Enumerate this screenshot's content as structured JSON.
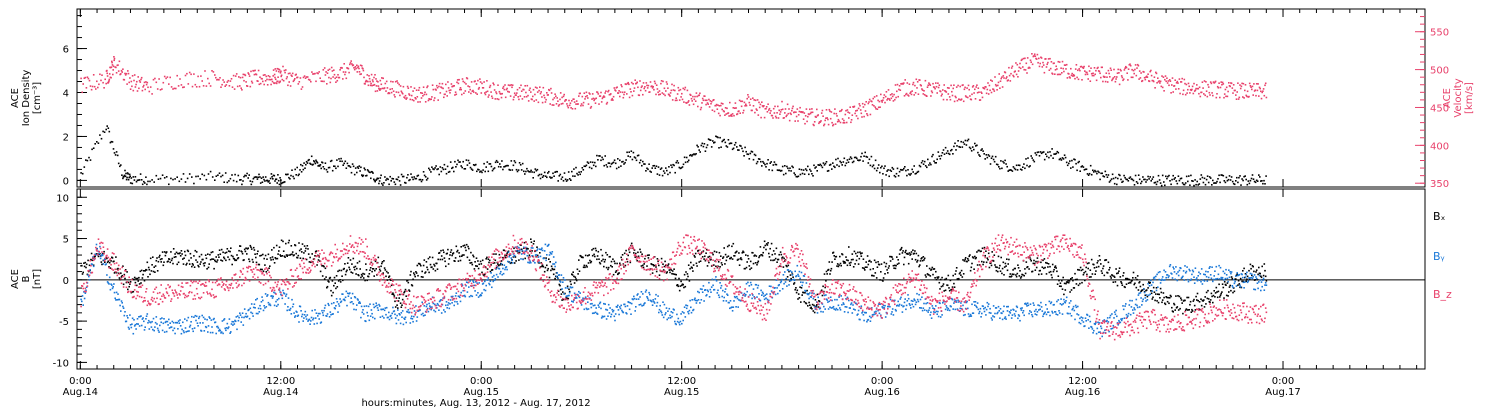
{
  "chart_data": [
    {
      "type": "scatter",
      "panel": "top",
      "ylabel_left": [
        "ACE",
        "Ion Density",
        "[cm⁻³]"
      ],
      "ylabel_right": [
        "ACE",
        "Velocity",
        "[km/s]"
      ],
      "ylim_left": [
        -0.3,
        7.8
      ],
      "ylim_right": [
        345,
        580
      ],
      "yticks_left": [
        "0",
        "2",
        "4",
        "6"
      ],
      "yticks_right": [
        "350",
        "400",
        "450",
        "500",
        "550"
      ],
      "series": [
        {
          "axis": "left",
          "color": "#000000",
          "x": [
            0.0,
            1.5,
            2.5,
            3.0,
            4.0,
            6.0,
            8.0,
            9.5,
            10.5,
            11.3,
            12.0,
            13.0,
            13.8,
            14.5,
            15.5,
            16.5,
            17.3,
            18.0,
            19.0,
            20.0,
            21.0,
            22.0,
            23.0,
            24.0,
            25.0,
            26.0,
            27.0,
            28.0,
            29.0,
            30.0,
            31.0,
            32.0,
            33.0,
            34.0,
            35.0,
            36.0,
            37.0,
            38.0,
            39.0,
            40.0,
            41.0,
            42.0,
            43.0,
            44.0,
            45.0,
            46.0,
            47.0,
            48.0,
            49.0,
            50.0,
            51.0,
            52.0,
            53.0,
            54.0,
            55.0,
            56.0,
            57.0,
            58.0,
            59.0,
            60.0,
            61.0,
            62.0,
            63.0,
            64.0,
            65.0,
            66.0,
            67.0,
            68.0,
            69.0,
            70.0,
            71.0
          ],
          "y": [
            0.3,
            2.5,
            0.3,
            0.1,
            0.1,
            0.1,
            0.2,
            0.1,
            0.1,
            0.1,
            0.1,
            0.4,
            1.0,
            0.6,
            0.8,
            0.5,
            0.3,
            0.05,
            0.05,
            0.1,
            0.4,
            0.6,
            0.8,
            0.6,
            0.8,
            0.7,
            0.4,
            0.2,
            0.2,
            0.5,
            1.0,
            0.8,
            1.2,
            0.6,
            0.4,
            0.8,
            1.5,
            1.8,
            1.6,
            1.2,
            0.8,
            0.5,
            0.4,
            0.5,
            0.8,
            1.0,
            1.1,
            0.5,
            0.4,
            0.6,
            1.0,
            1.4,
            1.8,
            1.2,
            0.8,
            0.6,
            1.0,
            1.3,
            0.9,
            0.6,
            0.3,
            0.1,
            0.05,
            0.05,
            0.05,
            0.05,
            0.05,
            0.05,
            0.05,
            0.05,
            0.05
          ]
        },
        {
          "axis": "right",
          "color": "#e8416b",
          "x": [
            0.0,
            1.5,
            2.0,
            3.0,
            4.0,
            6.0,
            8.0,
            9.5,
            10.5,
            11.5,
            12.0,
            13.0,
            14.5,
            15.5,
            16.5,
            17.3,
            18.0,
            19.0,
            20.0,
            21.0,
            22.0,
            23.0,
            24.0,
            25.0,
            26.0,
            27.0,
            28.0,
            29.0,
            30.0,
            31.0,
            32.0,
            33.0,
            34.0,
            35.0,
            36.0,
            37.0,
            38.0,
            39.0,
            40.0,
            41.0,
            42.0,
            43.0,
            44.0,
            45.0,
            46.0,
            47.0,
            48.0,
            49.0,
            50.0,
            51.0,
            52.0,
            53.0,
            54.0,
            55.0,
            56.0,
            57.0,
            58.0,
            59.0,
            60.0,
            61.0,
            62.0,
            63.0,
            64.0,
            65.0,
            66.0,
            67.0,
            68.0,
            69.0,
            70.0,
            71.0
          ],
          "y": [
            480,
            488,
            510,
            485,
            478,
            488,
            490,
            484,
            490,
            490,
            495,
            485,
            492,
            496,
            504,
            486,
            480,
            475,
            468,
            470,
            474,
            480,
            478,
            472,
            470,
            470,
            466,
            460,
            460,
            462,
            470,
            476,
            480,
            474,
            468,
            460,
            452,
            448,
            458,
            444,
            448,
            440,
            438,
            438,
            440,
            450,
            460,
            476,
            478,
            474,
            470,
            470,
            470,
            485,
            500,
            512,
            505,
            500,
            496,
            496,
            490,
            500,
            490,
            482,
            478,
            476,
            475,
            473,
            472,
            472
          ]
        }
      ]
    },
    {
      "type": "scatter",
      "panel": "bottom",
      "ylabel": [
        "ACE",
        "B",
        "[nT]"
      ],
      "ylim": [
        -10.8,
        11
      ],
      "yticks": [
        "-10",
        "-5",
        "0",
        "5",
        "10"
      ],
      "legend_placement": "right",
      "series": [
        {
          "name": "Bₓ",
          "color": "#000000",
          "x": [
            0,
            1,
            2,
            3,
            4,
            5,
            6,
            7,
            8,
            9,
            10,
            11,
            12,
            13,
            14,
            15,
            16,
            17,
            18,
            19,
            20,
            21,
            22,
            23,
            24,
            25,
            26,
            27,
            28,
            29,
            30,
            31,
            32,
            33,
            34,
            35,
            36,
            37,
            38,
            39,
            40,
            41,
            42,
            43,
            44,
            45,
            46,
            47,
            48,
            49,
            50,
            51,
            52,
            53,
            54,
            55,
            56,
            57,
            58,
            59,
            60,
            61,
            62,
            63,
            64,
            65,
            66,
            67,
            68,
            69,
            70,
            71
          ],
          "y": [
            1.0,
            3.0,
            2.0,
            -0.5,
            1.5,
            2.5,
            3.0,
            2.5,
            2.5,
            3.0,
            3.5,
            2.0,
            4.0,
            3.5,
            3.0,
            -1.0,
            2.0,
            1.0,
            2.0,
            -3.0,
            1.0,
            2.0,
            3.0,
            3.5,
            1.5,
            2.5,
            3.0,
            4.0,
            1.5,
            -2.0,
            2.5,
            3.0,
            1.5,
            3.5,
            2.0,
            1.5,
            -0.5,
            3.0,
            2.5,
            3.5,
            2.0,
            4.0,
            2.5,
            -1.5,
            -3.0,
            2.5,
            3.0,
            2.0,
            1.0,
            3.0,
            3.0,
            0.5,
            -0.5,
            2.0,
            3.0,
            2.0,
            1.0,
            2.0,
            1.5,
            -1.0,
            1.0,
            2.0,
            0.5,
            0.0,
            -1.0,
            -2.5,
            -3.0,
            -2.5,
            -1.5,
            -0.5,
            1.0,
            1.0
          ]
        },
        {
          "name": "Bᵧ",
          "color": "#1a78d8",
          "x": [
            0,
            1,
            2,
            3,
            4,
            5,
            6,
            7,
            8,
            9,
            10,
            11,
            12,
            13,
            14,
            15,
            16,
            17,
            18,
            19,
            20,
            21,
            22,
            23,
            24,
            25,
            26,
            27,
            28,
            29,
            30,
            31,
            32,
            33,
            34,
            35,
            36,
            37,
            38,
            39,
            40,
            41,
            42,
            43,
            44,
            45,
            46,
            47,
            48,
            49,
            50,
            51,
            52,
            53,
            54,
            55,
            56,
            57,
            58,
            59,
            60,
            61,
            62,
            63,
            64,
            65,
            66,
            67,
            68,
            69,
            70,
            71
          ],
          "y": [
            -3.0,
            4.0,
            -1.5,
            -5.5,
            -5.0,
            -5.5,
            -5.5,
            -5.0,
            -5.5,
            -5.5,
            -4.0,
            -2.5,
            -2.0,
            -4.0,
            -4.5,
            -3.5,
            -2.0,
            -4.0,
            -3.5,
            -4.5,
            -4.0,
            -3.0,
            -3.0,
            -1.0,
            -1.0,
            1.0,
            3.5,
            3.0,
            3.5,
            -1.0,
            -2.5,
            -3.5,
            -4.0,
            -3.0,
            -1.5,
            -4.0,
            -4.5,
            -2.0,
            -0.5,
            -3.0,
            -1.0,
            -2.0,
            0.0,
            1.0,
            -3.0,
            -2.5,
            -3.0,
            -4.5,
            -3.5,
            -3.0,
            -2.0,
            -4.0,
            -3.0,
            -3.5,
            -3.5,
            -4.0,
            -4.0,
            -3.5,
            -3.5,
            -3.0,
            -4.5,
            -6.0,
            -4.5,
            -3.0,
            -1.0,
            1.0,
            1.0,
            0.5,
            1.0,
            0.0,
            0.0,
            -0.5
          ]
        },
        {
          "name": "B_z",
          "color": "#e8416b",
          "x": [
            0,
            1,
            2,
            3,
            4,
            5,
            6,
            7,
            8,
            9,
            10,
            11,
            12,
            13,
            14,
            15,
            16,
            17,
            18,
            19,
            20,
            21,
            22,
            23,
            24,
            25,
            26,
            27,
            28,
            29,
            30,
            31,
            32,
            33,
            34,
            35,
            36,
            37,
            38,
            39,
            40,
            41,
            42,
            43,
            44,
            45,
            46,
            47,
            48,
            49,
            50,
            51,
            52,
            53,
            54,
            55,
            56,
            57,
            58,
            59,
            60,
            61,
            62,
            63,
            64,
            65,
            66,
            67,
            68,
            69,
            70,
            71
          ],
          "y": [
            -2.0,
            4.0,
            2.0,
            -1.0,
            -2.0,
            -1.5,
            -1.5,
            -1.0,
            -1.0,
            -0.5,
            1.0,
            0.5,
            -1.0,
            1.0,
            2.5,
            3.0,
            4.5,
            4.0,
            0.5,
            -1.5,
            -3.0,
            -2.5,
            -1.5,
            -0.5,
            1.0,
            3.0,
            4.5,
            3.5,
            -1.0,
            -3.0,
            -2.0,
            -1.0,
            0.0,
            3.5,
            2.0,
            1.0,
            4.5,
            4.0,
            2.0,
            -0.5,
            -2.5,
            -4.0,
            3.0,
            3.5,
            -2.5,
            -1.0,
            -1.5,
            -3.0,
            -3.5,
            -1.0,
            0.5,
            -3.0,
            -2.0,
            -3.0,
            2.5,
            4.5,
            4.0,
            3.0,
            4.0,
            4.5,
            3.0,
            -6.0,
            -6.0,
            -5.5,
            -4.5,
            -5.5,
            -5.0,
            -4.5,
            -3.5,
            -3.5,
            -4.0,
            -4.0
          ]
        }
      ]
    }
  ],
  "x_axis": {
    "xlim": [
      -0.2,
      80.5
    ],
    "ticks": [
      {
        "x": 0,
        "line1": "0:00",
        "line2": "Aug.14"
      },
      {
        "x": 12,
        "line1": "12:00",
        "line2": "Aug.14"
      },
      {
        "x": 24,
        "line1": "0:00",
        "line2": "Aug.15"
      },
      {
        "x": 36,
        "line1": "12:00",
        "line2": "Aug.15"
      },
      {
        "x": 48,
        "line1": "0:00",
        "line2": "Aug.16"
      },
      {
        "x": 60,
        "line1": "12:00",
        "line2": "Aug.16"
      },
      {
        "x": 72,
        "line1": "0:00",
        "line2": "Aug.17"
      }
    ],
    "xlabel": "hours:minutes, Aug. 13, 2012 - Aug. 17, 2012"
  }
}
